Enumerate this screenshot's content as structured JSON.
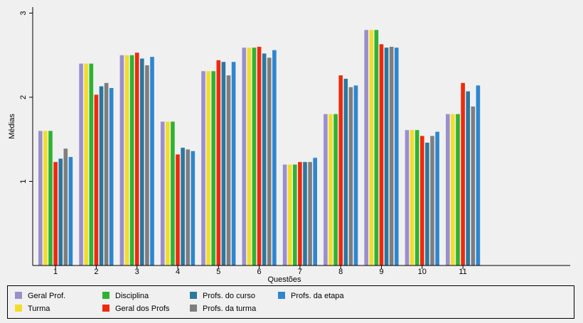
{
  "chart_data": {
    "type": "bar",
    "xlabel": "Questões",
    "ylabel": "Médias",
    "ylim": [
      0,
      3
    ],
    "y_ticks": [
      "1",
      "2",
      "3"
    ],
    "grid": false,
    "legend_position": "bottom",
    "categories": [
      "1",
      "2",
      "3",
      "4",
      "5",
      "6",
      "7",
      "8",
      "9",
      "10",
      "11"
    ],
    "series": [
      {
        "name": "Geral Prof.",
        "color": "#9a8fcd",
        "values": [
          1.6,
          2.4,
          2.5,
          1.71,
          2.31,
          2.59,
          1.2,
          1.8,
          2.8,
          1.61,
          1.8
        ]
      },
      {
        "name": "Turma",
        "color": "#f2dd2a",
        "values": [
          1.6,
          2.4,
          2.5,
          1.71,
          2.31,
          2.59,
          1.2,
          1.8,
          2.8,
          1.61,
          1.8
        ]
      },
      {
        "name": "Disciplina",
        "color": "#2fb32f",
        "values": [
          1.6,
          2.4,
          2.5,
          1.71,
          2.31,
          2.59,
          1.2,
          1.8,
          2.8,
          1.61,
          1.8
        ]
      },
      {
        "name": "Geral dos Profs",
        "color": "#ee2a0c",
        "values": [
          1.23,
          2.03,
          2.53,
          1.32,
          2.44,
          2.6,
          1.23,
          2.26,
          2.63,
          1.54,
          2.17
        ]
      },
      {
        "name": "Profs. do curso",
        "color": "#2b77a0",
        "values": [
          1.27,
          2.13,
          2.46,
          1.4,
          2.42,
          2.52,
          1.23,
          2.22,
          2.59,
          1.46,
          2.07
        ]
      },
      {
        "name": "Profs. da turma",
        "color": "#7e7e7e",
        "values": [
          1.39,
          2.17,
          2.38,
          1.38,
          2.26,
          2.47,
          1.23,
          2.12,
          2.6,
          1.54,
          1.89
        ]
      },
      {
        "name": "Profs. da etapa",
        "color": "#2d86d0",
        "values": [
          1.29,
          2.11,
          2.48,
          1.36,
          2.42,
          2.56,
          1.28,
          2.14,
          2.59,
          1.59,
          2.14
        ]
      }
    ]
  }
}
